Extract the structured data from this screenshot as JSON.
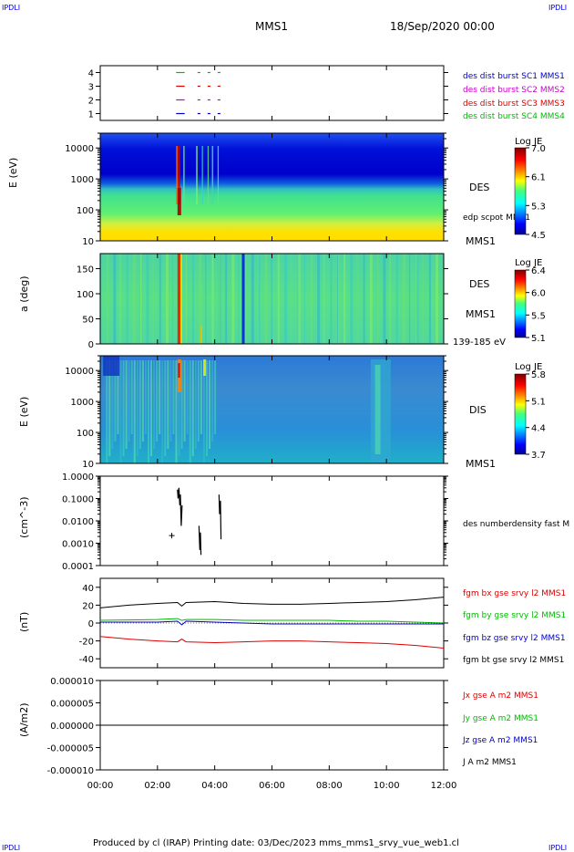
{
  "corner_labels": {
    "tl": "IPDLI",
    "tr": "IPDLI",
    "bl": "IPDLI",
    "br": "IPDLI"
  },
  "header": {
    "spacecraft": "MMS1",
    "date": "18/Sep/2020 00:00"
  },
  "footer": {
    "text": "Produced by cl (IRAP)   Printing date: 03/Dec/2023   mms_mms1_srvy_vue_web1.cl"
  },
  "time_axis": {
    "ticks": [
      "00:00",
      "02:00",
      "04:00",
      "06:00",
      "08:00",
      "10:00",
      "12:00"
    ],
    "range_hours": [
      0,
      12
    ]
  },
  "colors": {
    "blue": "#0000cc",
    "magenta": "#cc00cc",
    "red": "#dd0000",
    "green": "#00bb00",
    "black": "#000000"
  },
  "chart_data": [
    {
      "type": "scatter",
      "id": "burst-availability",
      "ylim": [
        0.5,
        4.5
      ],
      "yticks": [
        "1",
        "2",
        "3",
        "4"
      ],
      "legend": [
        {
          "name": "des dist burst SC1 MMS1",
          "color": "#0000cc"
        },
        {
          "name": "des dist burst SC2 MMS2",
          "color": "#cc00cc"
        },
        {
          "name": "des dist burst SC3 MMS3",
          "color": "#dd0000"
        },
        {
          "name": "des dist burst SC4 MMS4",
          "color": "#00bb00"
        }
      ],
      "series": [
        {
          "level": 4,
          "color": "#00bb00",
          "segments": [
            [
              2.65,
              2.95
            ],
            [
              3.4,
              3.5
            ],
            [
              3.75,
              3.85
            ],
            [
              4.1,
              4.2
            ]
          ]
        },
        {
          "level": 3,
          "color": "#dd0000",
          "segments": [
            [
              2.65,
              2.95
            ],
            [
              3.4,
              3.5
            ],
            [
              3.75,
              3.85
            ],
            [
              4.1,
              4.2
            ]
          ]
        },
        {
          "level": 2,
          "color": "#cc00cc",
          "segments": [
            [
              2.65,
              2.95
            ],
            [
              3.4,
              3.5
            ],
            [
              3.75,
              3.85
            ],
            [
              4.1,
              4.2
            ]
          ]
        },
        {
          "level": 1,
          "color": "#0000cc",
          "segments": [
            [
              2.65,
              2.95
            ],
            [
              3.4,
              3.5
            ],
            [
              3.75,
              3.85
            ],
            [
              4.1,
              4.2
            ]
          ]
        }
      ]
    },
    {
      "type": "heatmap",
      "id": "des-energy",
      "ylabel": "E (eV)",
      "yscale": "log",
      "ylim": [
        10,
        30000
      ],
      "yticks": [
        "10",
        "100",
        "1000",
        "10000"
      ],
      "instrument": "DES",
      "overlay_label": "edp scpot MMS1",
      "spacecraft": "MMS1",
      "colorbar": {
        "title": "Log JE",
        "ticks": [
          "7.0",
          "6.1",
          "5.3",
          "4.5"
        ]
      }
    },
    {
      "type": "heatmap",
      "id": "des-pitch-angle",
      "ylabel": "a (deg)",
      "ylim": [
        0,
        180
      ],
      "yticks": [
        "0",
        "50",
        "100",
        "150"
      ],
      "instrument": "DES",
      "spacecraft": "MMS1",
      "energy_range": "139-185 eV",
      "colorbar": {
        "title": "Log JE",
        "ticks": [
          "6.4",
          "6.0",
          "5.5",
          "5.1"
        ]
      }
    },
    {
      "type": "heatmap",
      "id": "dis-energy",
      "ylabel": "E (eV)",
      "yscale": "log",
      "ylim": [
        10,
        30000
      ],
      "yticks": [
        "10",
        "100",
        "1000",
        "10000"
      ],
      "instrument": "DIS",
      "spacecraft": "MMS1",
      "colorbar": {
        "title": "Log JE",
        "ticks": [
          "5.8",
          "5.1",
          "4.4",
          "3.7"
        ]
      }
    },
    {
      "type": "line",
      "id": "density",
      "ylabel": "(cm^-3)",
      "yscale": "log",
      "ylim": [
        0.0001,
        1.0
      ],
      "yticks": [
        "0.0001",
        "0.0010",
        "0.0100",
        "0.1000",
        "1.0000"
      ],
      "series": [
        {
          "name": "des numberdensity fast M",
          "color": "#000000",
          "segments": [
            [
              [
                2.7,
                0.25
              ],
              [
                2.72,
                0.1
              ],
              [
                2.75,
                0.3
              ],
              [
                2.78,
                0.05
              ],
              [
                2.8,
                0.15
              ],
              [
                2.83,
                0.006
              ],
              [
                2.86,
                0.05
              ]
            ],
            [
              [
                3.45,
                0.006
              ],
              [
                3.48,
                0.0005
              ],
              [
                3.5,
                0.003
              ],
              [
                3.52,
                0.0003
              ]
            ],
            [
              [
                4.15,
                0.15
              ],
              [
                4.17,
                0.02
              ],
              [
                4.2,
                0.08
              ],
              [
                4.22,
                0.0015
              ]
            ]
          ],
          "markers": [
            [
              2.5,
              0.0022
            ]
          ]
        }
      ]
    },
    {
      "type": "line",
      "id": "magnetic-field",
      "ylabel": "(nT)",
      "ylim": [
        -50,
        50
      ],
      "yticks": [
        "-40",
        "-20",
        "0",
        "20",
        "40"
      ],
      "x": [
        0,
        1,
        2,
        2.7,
        2.85,
        3,
        4,
        5,
        6,
        7,
        8,
        9,
        10,
        11,
        12
      ],
      "series": [
        {
          "name": "fgm bx gse srvy l2 MMS1",
          "color": "#dd0000",
          "values": [
            -15,
            -18,
            -20,
            -21,
            -18,
            -21,
            -22,
            -21,
            -20,
            -20,
            -21,
            -22,
            -23,
            -25,
            -28
          ]
        },
        {
          "name": "fgm by gse srvy l2 MMS1",
          "color": "#00bb00",
          "values": [
            3,
            3.5,
            4,
            5,
            3,
            4,
            4,
            3,
            3,
            3,
            3,
            2,
            2,
            1,
            0
          ]
        },
        {
          "name": "fgm bz gse srvy l2 MMS1",
          "color": "#0000cc",
          "values": [
            1,
            1,
            1,
            2,
            -2,
            2,
            1,
            0,
            -1,
            -1,
            -1,
            -1,
            -1,
            -1,
            -1
          ]
        },
        {
          "name": "fgm bt gse srvy l2 MMS1",
          "color": "#000000",
          "values": [
            17,
            20,
            22,
            23,
            19,
            23,
            24,
            22,
            21,
            21,
            22,
            23,
            24,
            26,
            29
          ]
        }
      ]
    },
    {
      "type": "line",
      "id": "current-density",
      "ylabel": "(A/m2)",
      "ylim": [
        -1e-05,
        1e-05
      ],
      "yticks": [
        "-0.000010",
        "-0.000005",
        "0.000000",
        "0.000005",
        "0.000010"
      ],
      "x": [
        0,
        12
      ],
      "series": [
        {
          "name": "Jx gse A m2 MMS1",
          "color": "#dd0000",
          "values": [
            0,
            0
          ]
        },
        {
          "name": "Jy gse A m2 MMS1",
          "color": "#00bb00",
          "values": [
            0,
            0
          ]
        },
        {
          "name": "Jz gse A m2 MMS1",
          "color": "#0000cc",
          "values": [
            0,
            0
          ]
        },
        {
          "name": "J A m2 MMS1",
          "color": "#000000",
          "values": [
            0,
            0
          ]
        }
      ]
    }
  ]
}
